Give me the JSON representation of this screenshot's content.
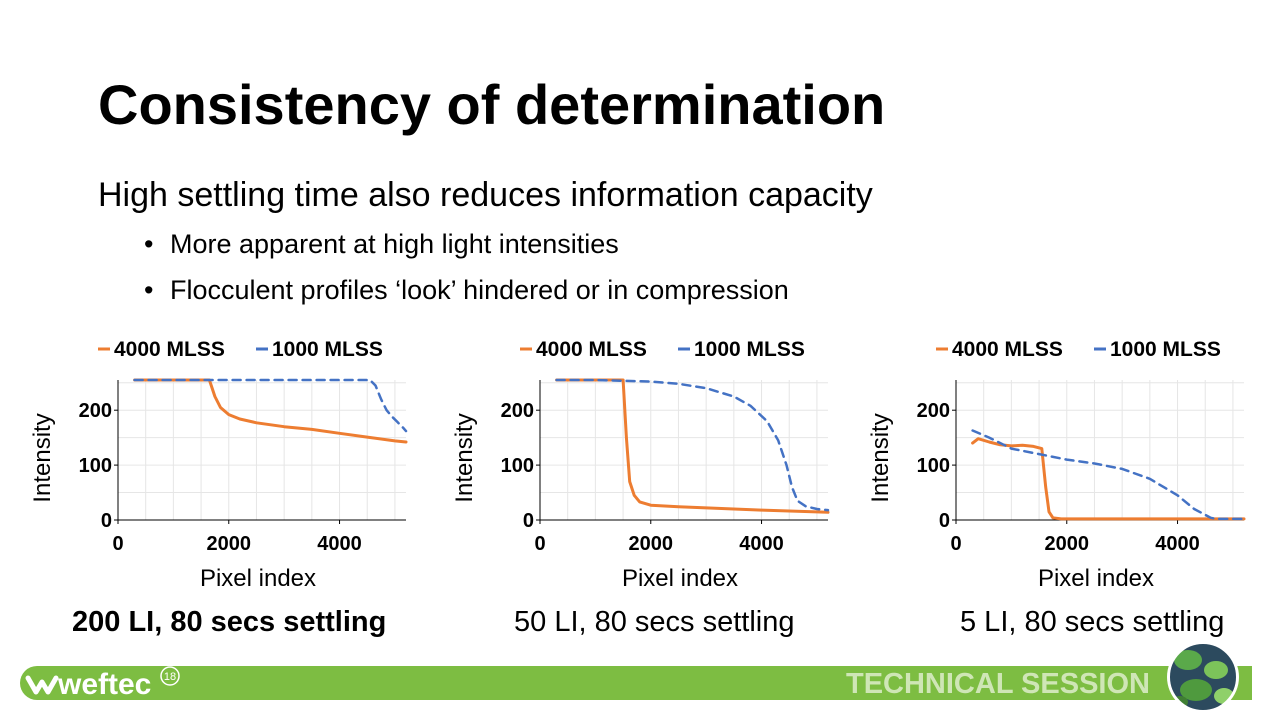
{
  "slide": {
    "title": "Consistency of determination",
    "subtitle": "High settling time also reduces information capacity",
    "bullets": [
      "More apparent at high light intensities",
      "Flocculent profiles ‘look’ hindered or in compression"
    ],
    "captions": [
      "200 LI, 80 secs settling",
      "50 LI, 80 secs settling",
      "5 LI, 80 secs settling"
    ],
    "footer": {
      "brand": "weftec",
      "brand_superscript": "18",
      "session_label": "TECHNICAL SESSION"
    }
  },
  "colors": {
    "series_4000": "#ed7d31",
    "series_1000": "#4472c4",
    "footer_green": "#7dbd42",
    "footer_text": "#cfe6b6"
  },
  "chart_data": [
    {
      "type": "line",
      "xlabel": "Pixel index",
      "ylabel": "Intensity",
      "xlim": [
        0,
        5200
      ],
      "ylim": [
        0,
        255
      ],
      "xticks": [
        "0",
        "2000",
        "4000"
      ],
      "yticks": [
        "0",
        "100",
        "200"
      ],
      "grid": true,
      "legend": "top",
      "series": [
        {
          "name": "4000 MLSS",
          "style": "solid",
          "x": [
            300,
            1650,
            1750,
            1850,
            2000,
            2200,
            2500,
            3000,
            3500,
            4000,
            4500,
            5000,
            5200
          ],
          "y": [
            255,
            255,
            225,
            205,
            192,
            184,
            177,
            170,
            165,
            158,
            151,
            144,
            142
          ]
        },
        {
          "name": "1000 MLSS",
          "style": "dashed",
          "x": [
            300,
            1000,
            2000,
            3000,
            4000,
            4550,
            4650,
            4750,
            4850,
            4950,
            5050,
            5150,
            5200
          ],
          "y": [
            255,
            255,
            255,
            255,
            255,
            255,
            245,
            220,
            200,
            188,
            178,
            168,
            162
          ]
        }
      ]
    },
    {
      "type": "line",
      "xlabel": "Pixel index",
      "ylabel": "Intensity",
      "xlim": [
        0,
        5200
      ],
      "ylim": [
        0,
        255
      ],
      "xticks": [
        "0",
        "2000",
        "4000"
      ],
      "yticks": [
        "0",
        "100",
        "200"
      ],
      "grid": true,
      "legend": "top",
      "series": [
        {
          "name": "4000 MLSS",
          "style": "solid",
          "x": [
            300,
            1500,
            1560,
            1620,
            1700,
            1800,
            2000,
            2500,
            3000,
            4000,
            5200
          ],
          "y": [
            255,
            255,
            150,
            70,
            45,
            33,
            27,
            24,
            22,
            18,
            14
          ]
        },
        {
          "name": "1000 MLSS",
          "style": "dashed",
          "x": [
            300,
            1000,
            2000,
            2500,
            3000,
            3500,
            3800,
            4100,
            4300,
            4450,
            4550,
            4650,
            4800,
            5000,
            5200
          ],
          "y": [
            255,
            255,
            252,
            248,
            240,
            225,
            208,
            180,
            145,
            100,
            60,
            35,
            25,
            20,
            18
          ]
        }
      ]
    },
    {
      "type": "line",
      "xlabel": "Pixel index",
      "ylabel": "Intensity",
      "xlim": [
        0,
        5200
      ],
      "ylim": [
        0,
        255
      ],
      "xticks": [
        "0",
        "2000",
        "4000"
      ],
      "yticks": [
        "0",
        "100",
        "200"
      ],
      "grid": true,
      "legend": "top",
      "series": [
        {
          "name": "4000 MLSS",
          "style": "solid",
          "x": [
            300,
            400,
            600,
            800,
            1000,
            1200,
            1400,
            1550,
            1620,
            1680,
            1750,
            1900,
            3000,
            4000,
            5200
          ],
          "y": [
            140,
            148,
            142,
            137,
            135,
            136,
            134,
            130,
            60,
            15,
            4,
            2,
            2,
            2,
            2
          ]
        },
        {
          "name": "1000 MLSS",
          "style": "dashed",
          "x": [
            300,
            600,
            1000,
            1500,
            2000,
            2500,
            3000,
            3500,
            4000,
            4300,
            4600,
            4700,
            5200
          ],
          "y": [
            163,
            150,
            130,
            120,
            110,
            103,
            93,
            75,
            45,
            20,
            4,
            2,
            2
          ]
        }
      ]
    }
  ]
}
